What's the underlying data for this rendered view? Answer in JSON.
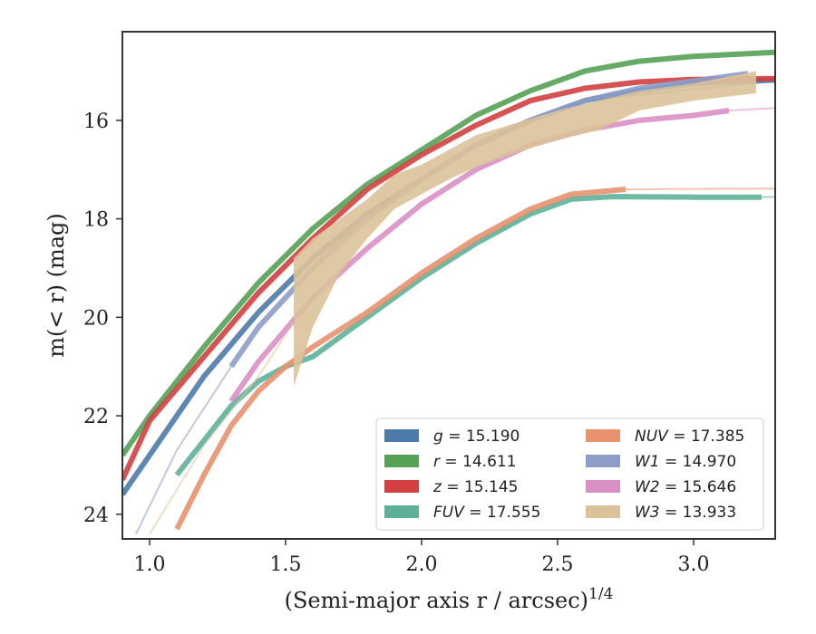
{
  "chart_data": {
    "type": "line",
    "xlabel": "(Semi-major axis r / arcsec)",
    "xlabel_superscript": "1/4",
    "ylabel": "m(< r) (mag)",
    "xlim": [
      0.9,
      3.3
    ],
    "ylim": [
      24.5,
      14.2
    ],
    "y_inverted": true,
    "x_ticks": [
      1.0,
      1.5,
      2.0,
      2.5,
      3.0
    ],
    "x_tick_labels": [
      "1.0",
      "1.5",
      "2.0",
      "2.5",
      "3.0"
    ],
    "y_ticks": [
      16,
      18,
      20,
      22,
      24
    ],
    "y_tick_labels": [
      "16",
      "18",
      "20",
      "22",
      "24"
    ],
    "grid": false,
    "legend_position": "bottom-right",
    "series": [
      {
        "name": "g = 15.190",
        "legend": {
          "var": "g",
          "value": "15.190"
        },
        "color": "#4c7aa9",
        "x": [
          0.9,
          1.0,
          1.2,
          1.4,
          1.6,
          1.8,
          2.0,
          2.2,
          2.4,
          2.6,
          2.8,
          3.0,
          3.3
        ],
        "y": [
          23.6,
          22.8,
          21.2,
          19.9,
          18.8,
          17.9,
          17.2,
          16.5,
          16.0,
          15.6,
          15.4,
          15.25,
          15.18
        ],
        "extension_x": [
          2.6,
          3.3
        ],
        "extension_y": [
          15.6,
          15.2
        ]
      },
      {
        "name": "r = 14.611",
        "legend": {
          "var": "r",
          "value": "14.611"
        },
        "color": "#55a155",
        "x": [
          0.9,
          1.0,
          1.2,
          1.4,
          1.6,
          1.8,
          2.0,
          2.2,
          2.4,
          2.6,
          2.8,
          3.0,
          3.3
        ],
        "y": [
          22.8,
          22.0,
          20.6,
          19.3,
          18.2,
          17.3,
          16.6,
          15.9,
          15.4,
          15.0,
          14.8,
          14.7,
          14.62
        ]
      },
      {
        "name": "z = 15.145",
        "legend": {
          "var": "z",
          "value": "15.145"
        },
        "color": "#d24040",
        "x": [
          0.9,
          1.0,
          1.2,
          1.4,
          1.6,
          1.8,
          2.0,
          2.2,
          2.4,
          2.6,
          2.8,
          3.0,
          3.3
        ],
        "y": [
          23.3,
          22.1,
          20.8,
          19.5,
          18.4,
          17.4,
          16.7,
          16.1,
          15.6,
          15.35,
          15.22,
          15.17,
          15.15
        ]
      },
      {
        "name": "FUV = 17.555",
        "legend": {
          "var": "FUV",
          "value": "17.555"
        },
        "color": "#5fb09a",
        "x": [
          1.1,
          1.2,
          1.3,
          1.4,
          1.5,
          1.6,
          1.8,
          2.0,
          2.2,
          2.4,
          2.55,
          2.7,
          3.0,
          3.25
        ],
        "y": [
          23.2,
          22.5,
          21.8,
          21.3,
          21.0,
          20.8,
          20.0,
          19.2,
          18.5,
          17.9,
          17.6,
          17.55,
          17.56,
          17.56
        ],
        "extension_x": [
          3.25,
          3.3
        ],
        "extension_y": [
          17.56,
          17.555
        ]
      },
      {
        "name": "NUV = 17.385",
        "legend": {
          "var": "NUV",
          "value": "17.385"
        },
        "color": "#e8926e",
        "x": [
          1.1,
          1.2,
          1.3,
          1.4,
          1.5,
          1.6,
          1.8,
          2.0,
          2.2,
          2.4,
          2.55,
          2.75
        ],
        "y": [
          24.3,
          23.2,
          22.2,
          21.5,
          21.0,
          20.6,
          19.9,
          19.1,
          18.4,
          17.8,
          17.5,
          17.4
        ],
        "extension_x": [
          2.75,
          3.3
        ],
        "extension_y": [
          17.4,
          17.385
        ]
      },
      {
        "name": "W1 = 14.970",
        "legend": {
          "var": "W1",
          "value": "14.970"
        },
        "color": "#8d9dc6",
        "x": [
          1.3,
          1.4,
          1.6,
          1.8,
          2.0,
          2.2,
          2.4,
          2.6,
          2.8,
          3.0,
          3.2
        ],
        "y": [
          21.0,
          20.2,
          19.0,
          18.0,
          17.2,
          16.5,
          16.0,
          15.6,
          15.35,
          15.2,
          15.05
        ],
        "extension_x": [
          0.95,
          1.1,
          1.3
        ],
        "extension_y": [
          24.4,
          22.7,
          21.0
        ]
      },
      {
        "name": "W2 = 15.646",
        "legend": {
          "var": "W2",
          "value": "15.646"
        },
        "color": "#d98fc4",
        "x": [
          1.3,
          1.4,
          1.6,
          1.8,
          2.0,
          2.2,
          2.4,
          2.6,
          2.8,
          3.0,
          3.13
        ],
        "y": [
          21.7,
          20.9,
          19.6,
          18.6,
          17.7,
          17.0,
          16.5,
          16.2,
          16.0,
          15.9,
          15.8
        ],
        "extension_x": [
          3.13,
          3.3
        ],
        "extension_y": [
          15.8,
          15.75
        ]
      },
      {
        "name": "W3 = 13.933",
        "legend": {
          "var": "W3",
          "value": "13.933"
        },
        "color": "#dcc29a",
        "x": [
          1.53,
          1.6,
          1.7,
          1.8,
          1.9,
          2.0,
          2.1,
          2.2,
          2.35,
          2.5,
          2.65,
          2.8,
          3.0,
          3.23
        ],
        "y_upper": [
          18.8,
          18.4,
          18.0,
          17.6,
          17.1,
          16.9,
          16.6,
          16.3,
          16.05,
          15.8,
          15.6,
          15.4,
          15.25,
          15.0
        ],
        "y_lower": [
          21.4,
          20.2,
          19.1,
          18.4,
          17.8,
          17.5,
          17.2,
          16.95,
          16.65,
          16.4,
          16.2,
          15.8,
          15.6,
          15.45
        ],
        "extension_x": [
          1.0,
          1.2,
          1.4,
          1.53
        ],
        "extension_y": [
          24.4,
          22.6,
          21.2,
          20.1
        ]
      }
    ]
  }
}
